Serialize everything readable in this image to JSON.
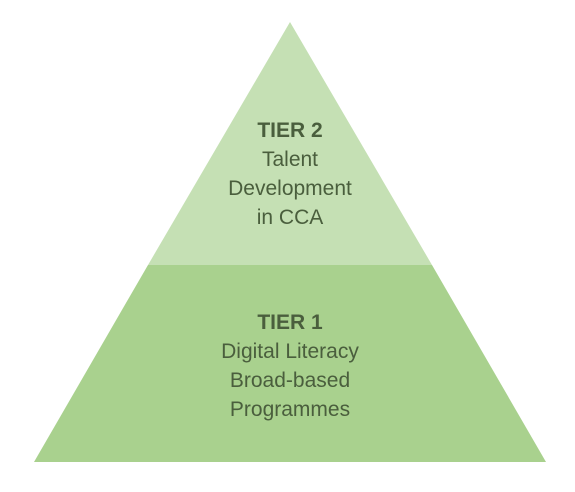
{
  "colors": {
    "top_tier_fill": "#c5e0b4",
    "bottom_tier_fill": "#a9d18e",
    "text": "#4a5e3d"
  },
  "pyramid": {
    "tiers": [
      {
        "heading": "TIER 2",
        "lines": [
          "Talent",
          "Development",
          "in CCA"
        ]
      },
      {
        "heading": "TIER 1",
        "lines": [
          "Digital Literacy",
          "Broad-based",
          "Programmes"
        ]
      }
    ]
  }
}
